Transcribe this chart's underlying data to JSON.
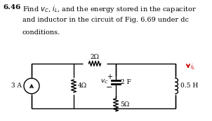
{
  "text_bold": "6.46",
  "text_line1": "Find $v_C$, $i_L$, and the energy stored in the capacitor",
  "text_line2": "and inductor in the circuit of Fig. 6.69 under dc",
  "text_line3": "conditions.",
  "source_label": "3 A",
  "R1_label": "2Ω",
  "R2_label": "4Ω",
  "R3_label": "5Ω",
  "cap_label": "2 F",
  "ind_label": "0.5 H",
  "il_label": "$i_L$",
  "vc_label": "$v_C$",
  "plus": "+",
  "minus": "−",
  "bg": "#ffffff",
  "wire_color": "#000000",
  "il_color": "#cc0000"
}
